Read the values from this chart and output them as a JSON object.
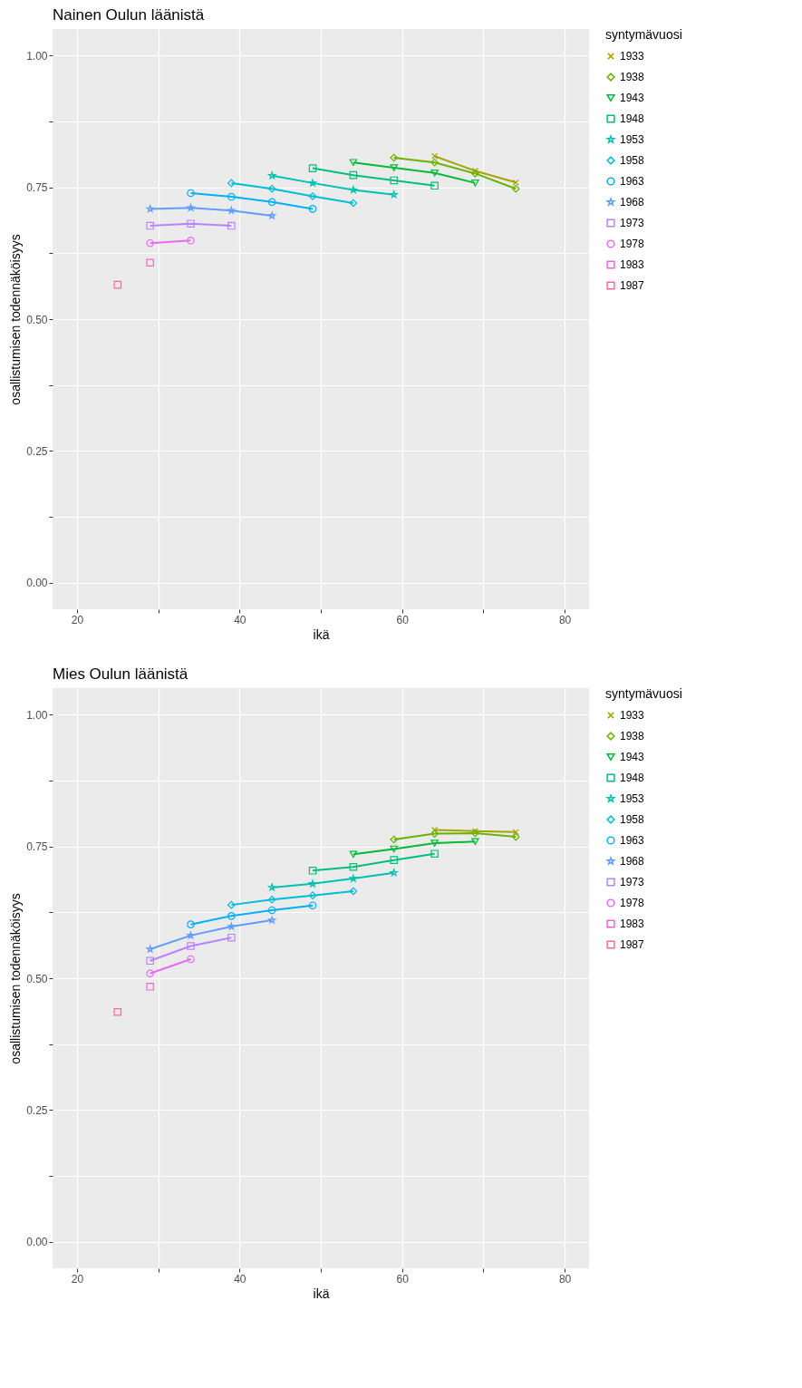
{
  "chart_data": [
    {
      "type": "line",
      "title": "Nainen Oulun läänistä",
      "xlabel": "ikä",
      "ylabel": "osallistumisen todennäköisyys",
      "legend_title": "syntymävuosi",
      "legend": "right",
      "grid": true,
      "line_style": "solid",
      "xlim": [
        17,
        83
      ],
      "ylim": [
        -0.05,
        1.05
      ],
      "xticks": [
        20,
        {
          "value": 30,
          "label": null
        },
        40,
        {
          "value": 50,
          "label": null
        },
        60,
        {
          "value": 70,
          "label": null
        },
        80
      ],
      "yticks": [
        "0.00",
        {
          "value": 0.125,
          "label": null
        },
        {
          "value": 0.25,
          "label": "0.25"
        },
        {
          "value": 0.375,
          "label": null
        },
        {
          "value": 0.5,
          "label": "0.50"
        },
        {
          "value": 0.625,
          "label": null
        },
        {
          "value": 0.75,
          "label": "0.75"
        },
        {
          "value": 0.875,
          "label": null
        },
        {
          "value": 1,
          "label": "1.00"
        }
      ],
      "series": [
        {
          "name": "1933",
          "color": "#A3A500",
          "marker": "cross",
          "x": [
            64,
            69,
            74
          ],
          "values": [
            0.809,
            0.781,
            0.759
          ]
        },
        {
          "name": "1938",
          "color": "#6BB100",
          "marker": "diamond",
          "x": [
            59,
            64,
            69,
            74
          ],
          "values": [
            0.806,
            0.797,
            0.776,
            0.747
          ]
        },
        {
          "name": "1943",
          "color": "#00BA38",
          "marker": "triangle",
          "x": [
            54,
            59,
            64,
            69
          ],
          "values": [
            0.797,
            0.787,
            0.777,
            0.758
          ]
        },
        {
          "name": "1948",
          "color": "#00BF7D",
          "marker": "square",
          "x": [
            49,
            54,
            59,
            64
          ],
          "values": [
            0.786,
            0.773,
            0.763,
            0.753
          ]
        },
        {
          "name": "1953",
          "color": "#00C0AF",
          "marker": "star",
          "x": [
            44,
            49,
            54,
            59
          ],
          "values": [
            0.772,
            0.758,
            0.745,
            0.736
          ]
        },
        {
          "name": "1958",
          "color": "#00BCD8",
          "marker": "diamond",
          "x": [
            39,
            44,
            49,
            54
          ],
          "values": [
            0.758,
            0.747,
            0.733,
            0.72
          ]
        },
        {
          "name": "1963",
          "color": "#00B0F6",
          "marker": "circle",
          "x": [
            34,
            39,
            44,
            49
          ],
          "values": [
            0.739,
            0.732,
            0.722,
            0.709
          ]
        },
        {
          "name": "1968",
          "color": "#619CFF",
          "marker": "star",
          "x": [
            29,
            34,
            39,
            44
          ],
          "values": [
            0.709,
            0.711,
            0.706,
            0.696
          ]
        },
        {
          "name": "1973",
          "color": "#B983FF",
          "marker": "square",
          "x": [
            29,
            34,
            39
          ],
          "values": [
            0.677,
            0.681,
            0.677
          ]
        },
        {
          "name": "1978",
          "color": "#E76BF3",
          "marker": "circle",
          "x": [
            29,
            34
          ],
          "values": [
            0.644,
            0.649
          ]
        },
        {
          "name": "1983",
          "color": "#FD61D1",
          "marker": "square",
          "x": [
            29
          ],
          "values": [
            0.607
          ]
        },
        {
          "name": "1987",
          "color": "#FF67A4",
          "marker": "square",
          "x": [
            25
          ],
          "values": [
            0.565
          ]
        }
      ]
    },
    {
      "type": "line",
      "title": "Mies Oulun läänistä",
      "xlabel": "ikä",
      "ylabel": "osallistumisen todennäköisyys",
      "legend_title": "syntymävuosi",
      "legend": "right",
      "grid": true,
      "line_style": "solid",
      "xlim": [
        17,
        83
      ],
      "ylim": [
        -0.05,
        1.05
      ],
      "xticks": [
        20,
        {
          "value": 30,
          "label": null
        },
        40,
        {
          "value": 50,
          "label": null
        },
        60,
        {
          "value": 70,
          "label": null
        },
        80
      ],
      "yticks": [
        "0.00",
        {
          "value": 0.125,
          "label": null
        },
        {
          "value": 0.25,
          "label": "0.25"
        },
        {
          "value": 0.375,
          "label": null
        },
        {
          "value": 0.5,
          "label": "0.50"
        },
        {
          "value": 0.625,
          "label": null
        },
        {
          "value": 0.75,
          "label": "0.75"
        },
        {
          "value": 0.875,
          "label": null
        },
        {
          "value": 1,
          "label": "1.00"
        }
      ],
      "series": [
        {
          "name": "1933",
          "color": "#A3A500",
          "marker": "cross",
          "x": [
            64,
            69,
            74
          ],
          "values": [
            0.781,
            0.779,
            0.777
          ]
        },
        {
          "name": "1938",
          "color": "#6BB100",
          "marker": "diamond",
          "x": [
            59,
            64,
            69,
            74
          ],
          "values": [
            0.763,
            0.774,
            0.775,
            0.768
          ]
        },
        {
          "name": "1943",
          "color": "#00BA38",
          "marker": "triangle",
          "x": [
            54,
            59,
            64,
            69
          ],
          "values": [
            0.735,
            0.745,
            0.756,
            0.759
          ]
        },
        {
          "name": "1948",
          "color": "#00BF7D",
          "marker": "square",
          "x": [
            49,
            54,
            59,
            64
          ],
          "values": [
            0.704,
            0.711,
            0.724,
            0.736
          ]
        },
        {
          "name": "1953",
          "color": "#00C0AF",
          "marker": "star",
          "x": [
            44,
            49,
            54,
            59
          ],
          "values": [
            0.672,
            0.679,
            0.689,
            0.7
          ]
        },
        {
          "name": "1958",
          "color": "#00BCD8",
          "marker": "diamond",
          "x": [
            39,
            44,
            49,
            54
          ],
          "values": [
            0.639,
            0.649,
            0.657,
            0.665
          ]
        },
        {
          "name": "1963",
          "color": "#00B0F6",
          "marker": "circle",
          "x": [
            34,
            39,
            44,
            49
          ],
          "values": [
            0.602,
            0.618,
            0.629,
            0.638
          ]
        },
        {
          "name": "1968",
          "color": "#619CFF",
          "marker": "star",
          "x": [
            29,
            34,
            39,
            44
          ],
          "values": [
            0.555,
            0.581,
            0.598,
            0.61
          ]
        },
        {
          "name": "1973",
          "color": "#B983FF",
          "marker": "square",
          "x": [
            29,
            34,
            39
          ],
          "values": [
            0.533,
            0.561,
            0.577
          ]
        },
        {
          "name": "1978",
          "color": "#E76BF3",
          "marker": "circle",
          "x": [
            29,
            34
          ],
          "values": [
            0.509,
            0.536
          ]
        },
        {
          "name": "1983",
          "color": "#FD61D1",
          "marker": "square",
          "x": [
            29
          ],
          "values": [
            0.484
          ]
        },
        {
          "name": "1987",
          "color": "#FF67A4",
          "marker": "square",
          "x": [
            25
          ],
          "values": [
            0.436
          ]
        }
      ]
    }
  ]
}
